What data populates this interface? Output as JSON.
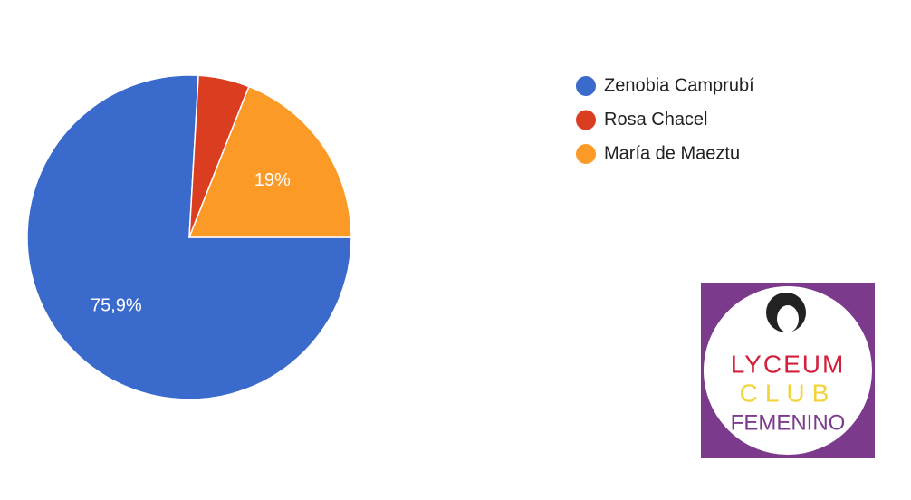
{
  "chart_data": {
    "type": "pie",
    "categories": [
      "Zenobia Camprubí",
      "Rosa Chacel",
      "María de Maeztu"
    ],
    "values": [
      75.9,
      5.1,
      19
    ],
    "value_labels": [
      "75,9%",
      null,
      "19%"
    ],
    "colors": [
      "#3a6bcc",
      "#db3d20",
      "#fb9a26"
    ],
    "start_angle": 90,
    "legend": "right"
  },
  "logo": {
    "lines": [
      "LYCEUM",
      "CLUB",
      "FEMENINO"
    ]
  }
}
